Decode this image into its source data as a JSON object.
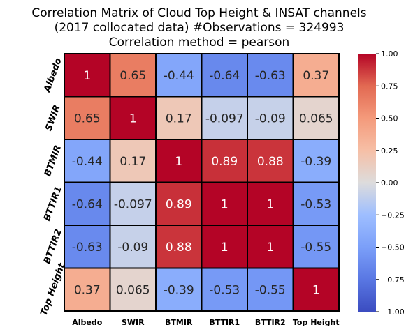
{
  "chart_data": {
    "type": "heatmap",
    "title_lines": [
      "Correlation Matrix of Cloud Top Height & INSAT channels",
      "(2017 collocated data) #Observations = 324993",
      "Correlation method = pearson"
    ],
    "row_labels": [
      "Albedo",
      "SWIR",
      "BTMIR",
      "BTTIR1",
      "BTTIR2",
      "Top Height"
    ],
    "col_labels": [
      "Albedo",
      "SWIR",
      "BTMIR",
      "BTTIR1",
      "BTTIR2",
      "Top Height"
    ],
    "values": [
      [
        1,
        0.65,
        -0.44,
        -0.64,
        -0.63,
        0.37
      ],
      [
        0.65,
        1,
        0.17,
        -0.097,
        -0.09,
        0.065
      ],
      [
        -0.44,
        0.17,
        1,
        0.89,
        0.88,
        -0.39
      ],
      [
        -0.64,
        -0.097,
        0.89,
        1,
        1,
        -0.53
      ],
      [
        -0.63,
        -0.09,
        0.88,
        1,
        1,
        -0.55
      ],
      [
        0.37,
        0.065,
        -0.39,
        -0.53,
        -0.55,
        1
      ]
    ],
    "annotations": [
      [
        "1",
        "0.65",
        "-0.44",
        "-0.64",
        "-0.63",
        "0.37"
      ],
      [
        "0.65",
        "1",
        "0.17",
        "-0.097",
        "-0.09",
        "0.065"
      ],
      [
        "-0.44",
        "0.17",
        "1",
        "0.89",
        "0.88",
        "-0.39"
      ],
      [
        "-0.64",
        "-0.097",
        "0.89",
        "1",
        "1",
        "-0.53"
      ],
      [
        "-0.63",
        "-0.09",
        "0.88",
        "1",
        "1",
        "-0.55"
      ],
      [
        "0.37",
        "0.065",
        "-0.39",
        "-0.53",
        "-0.55",
        "1"
      ]
    ],
    "colormap": "coolwarm",
    "vmin": -1.0,
    "vmax": 1.0,
    "colorbar_ticks": [
      "1.00",
      "0.75",
      "0.50",
      "0.25",
      "0.00",
      "−0.25",
      "−0.50",
      "−0.75",
      "−1.00"
    ],
    "colorbar_tick_values": [
      1.0,
      0.75,
      0.5,
      0.25,
      0.0,
      -0.25,
      -0.5,
      -0.75,
      -1.0
    ],
    "grid": true
  }
}
